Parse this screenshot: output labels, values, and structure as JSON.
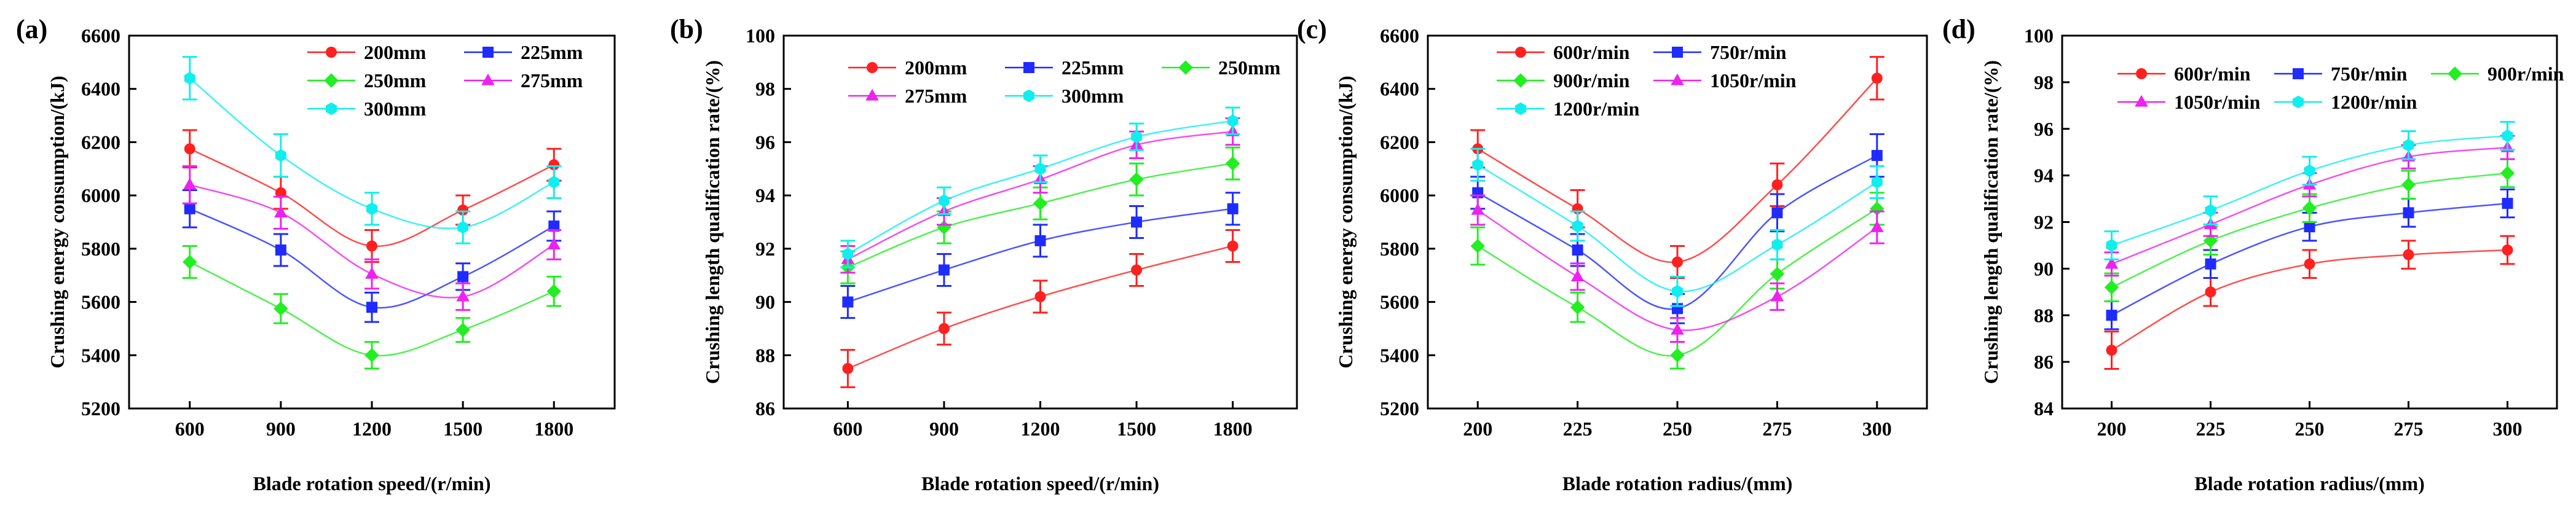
{
  "chart_data": [
    {
      "type": "line",
      "panel_label": "(a)",
      "xlabel": "Blade rotation speed/(r/min)",
      "ylabel": "Crushing energy consumption/(kJ)",
      "x": [
        600,
        900,
        1200,
        1500,
        1800
      ],
      "xlim": [
        400,
        2000
      ],
      "ylim": [
        5200,
        6600
      ],
      "yticks": [
        5200,
        5400,
        5600,
        5800,
        6000,
        6200,
        6400,
        6600
      ],
      "legend_cols": 2,
      "legend_position": "top-right",
      "series": [
        {
          "name": "200mm",
          "color": "#ff2020",
          "marker": "circle",
          "values": [
            6175,
            6010,
            5810,
            5945,
            6115
          ],
          "errors": [
            70,
            60,
            60,
            55,
            60
          ]
        },
        {
          "name": "225mm",
          "color": "#1f2bff",
          "marker": "square",
          "values": [
            5950,
            5795,
            5580,
            5695,
            5885
          ],
          "errors": [
            70,
            60,
            55,
            50,
            55
          ]
        },
        {
          "name": "250mm",
          "color": "#22ee22",
          "marker": "diamond",
          "values": [
            5750,
            5575,
            5400,
            5495,
            5640
          ],
          "errors": [
            60,
            55,
            50,
            45,
            55
          ]
        },
        {
          "name": "275mm",
          "color": "#ee22ee",
          "marker": "triangle",
          "values": [
            6040,
            5935,
            5705,
            5620,
            5815
          ],
          "errors": [
            70,
            60,
            55,
            50,
            55
          ]
        },
        {
          "name": "300mm",
          "color": "#11eeee",
          "marker": "hexagon",
          "values": [
            6440,
            6150,
            5950,
            5880,
            6050
          ],
          "errors": [
            80,
            80,
            60,
            60,
            60
          ]
        }
      ]
    },
    {
      "type": "line",
      "panel_label": "(b)",
      "xlabel": "Blade rotation speed/(r/min)",
      "ylabel": "Crushing length qualification rate/(%)",
      "x": [
        600,
        900,
        1200,
        1500,
        1800
      ],
      "xlim": [
        400,
        2000
      ],
      "ylim": [
        86,
        100
      ],
      "yticks": [
        86,
        88,
        90,
        92,
        94,
        96,
        98,
        100
      ],
      "legend_cols": 3,
      "legend_position": "top-left",
      "series": [
        {
          "name": "200mm",
          "color": "#ff2020",
          "marker": "circle",
          "values": [
            87.5,
            89.0,
            90.2,
            91.2,
            92.1
          ],
          "errors": [
            0.7,
            0.6,
            0.6,
            0.6,
            0.6
          ]
        },
        {
          "name": "225mm",
          "color": "#1f2bff",
          "marker": "square",
          "values": [
            90.0,
            91.2,
            92.3,
            93.0,
            93.5
          ],
          "errors": [
            0.6,
            0.6,
            0.6,
            0.6,
            0.6
          ]
        },
        {
          "name": "250mm",
          "color": "#22ee22",
          "marker": "diamond",
          "values": [
            91.3,
            92.8,
            93.7,
            94.6,
            95.2
          ],
          "errors": [
            0.6,
            0.6,
            0.6,
            0.6,
            0.6
          ]
        },
        {
          "name": "275mm",
          "color": "#ee22ee",
          "marker": "triangle",
          "values": [
            91.6,
            93.4,
            94.6,
            95.9,
            96.4
          ],
          "errors": [
            0.5,
            0.5,
            0.5,
            0.5,
            0.5
          ]
        },
        {
          "name": "300mm",
          "color": "#11eeee",
          "marker": "hexagon",
          "values": [
            91.8,
            93.8,
            95.0,
            96.2,
            96.8
          ],
          "errors": [
            0.5,
            0.5,
            0.5,
            0.5,
            0.5
          ]
        }
      ]
    },
    {
      "type": "line",
      "panel_label": "(c)",
      "xlabel": "Blade rotation radius/(mm)",
      "ylabel": "Crushing energy consumption/(kJ)",
      "x": [
        200,
        225,
        250,
        275,
        300
      ],
      "xlim": [
        187.5,
        312.5
      ],
      "ylim": [
        5200,
        6600
      ],
      "yticks": [
        5200,
        5400,
        5600,
        5800,
        6000,
        6200,
        6400,
        6600
      ],
      "legend_cols": 2,
      "legend_position": "top-left",
      "series": [
        {
          "name": "600r/min",
          "color": "#ff2020",
          "marker": "circle",
          "values": [
            6175,
            5950,
            5750,
            6040,
            6440
          ],
          "errors": [
            70,
            70,
            60,
            80,
            80
          ]
        },
        {
          "name": "750r/min",
          "color": "#1f2bff",
          "marker": "square",
          "values": [
            6010,
            5795,
            5575,
            5935,
            6150
          ],
          "errors": [
            60,
            60,
            55,
            70,
            80
          ]
        },
        {
          "name": "900r/min",
          "color": "#22ee22",
          "marker": "diamond",
          "values": [
            5810,
            5580,
            5400,
            5705,
            5950
          ],
          "errors": [
            70,
            55,
            50,
            55,
            60
          ]
        },
        {
          "name": "1050r/min",
          "color": "#ee22ee",
          "marker": "triangle",
          "values": [
            5945,
            5695,
            5495,
            5620,
            5880
          ],
          "errors": [
            55,
            50,
            45,
            50,
            60
          ]
        },
        {
          "name": "1200r/min",
          "color": "#11eeee",
          "marker": "hexagon",
          "values": [
            6115,
            5885,
            5640,
            5815,
            6050
          ],
          "errors": [
            60,
            55,
            55,
            55,
            60
          ]
        }
      ]
    },
    {
      "type": "line",
      "panel_label": "(d)",
      "xlabel": "Blade rotation radius/(mm)",
      "ylabel": "Crushing length qualification rate/(%)",
      "x": [
        200,
        225,
        250,
        275,
        300
      ],
      "xlim": [
        187.5,
        312.5
      ],
      "ylim": [
        84,
        100
      ],
      "yticks": [
        84,
        86,
        88,
        90,
        92,
        94,
        96,
        98,
        100
      ],
      "legend_cols": 3,
      "legend_position": "top-left",
      "series": [
        {
          "name": "600r/min",
          "color": "#ff2020",
          "marker": "circle",
          "values": [
            86.5,
            89.0,
            90.2,
            90.6,
            90.8
          ],
          "errors": [
            0.8,
            0.6,
            0.6,
            0.6,
            0.6
          ]
        },
        {
          "name": "750r/min",
          "color": "#1f2bff",
          "marker": "square",
          "values": [
            88.0,
            90.2,
            91.8,
            92.4,
            92.8
          ],
          "errors": [
            0.6,
            0.6,
            0.6,
            0.6,
            0.6
          ]
        },
        {
          "name": "900r/min",
          "color": "#22ee22",
          "marker": "diamond",
          "values": [
            89.2,
            91.2,
            92.6,
            93.6,
            94.1
          ],
          "errors": [
            0.6,
            0.6,
            0.6,
            0.6,
            0.6
          ]
        },
        {
          "name": "1050r/min",
          "color": "#ee22ee",
          "marker": "triangle",
          "values": [
            90.2,
            91.9,
            93.6,
            94.8,
            95.2
          ],
          "errors": [
            0.5,
            0.5,
            0.5,
            0.5,
            0.5
          ]
        },
        {
          "name": "1200r/min",
          "color": "#11eeee",
          "marker": "hexagon",
          "values": [
            91.0,
            92.5,
            94.2,
            95.3,
            95.7
          ],
          "errors": [
            0.6,
            0.6,
            0.6,
            0.6,
            0.6
          ]
        }
      ]
    }
  ]
}
